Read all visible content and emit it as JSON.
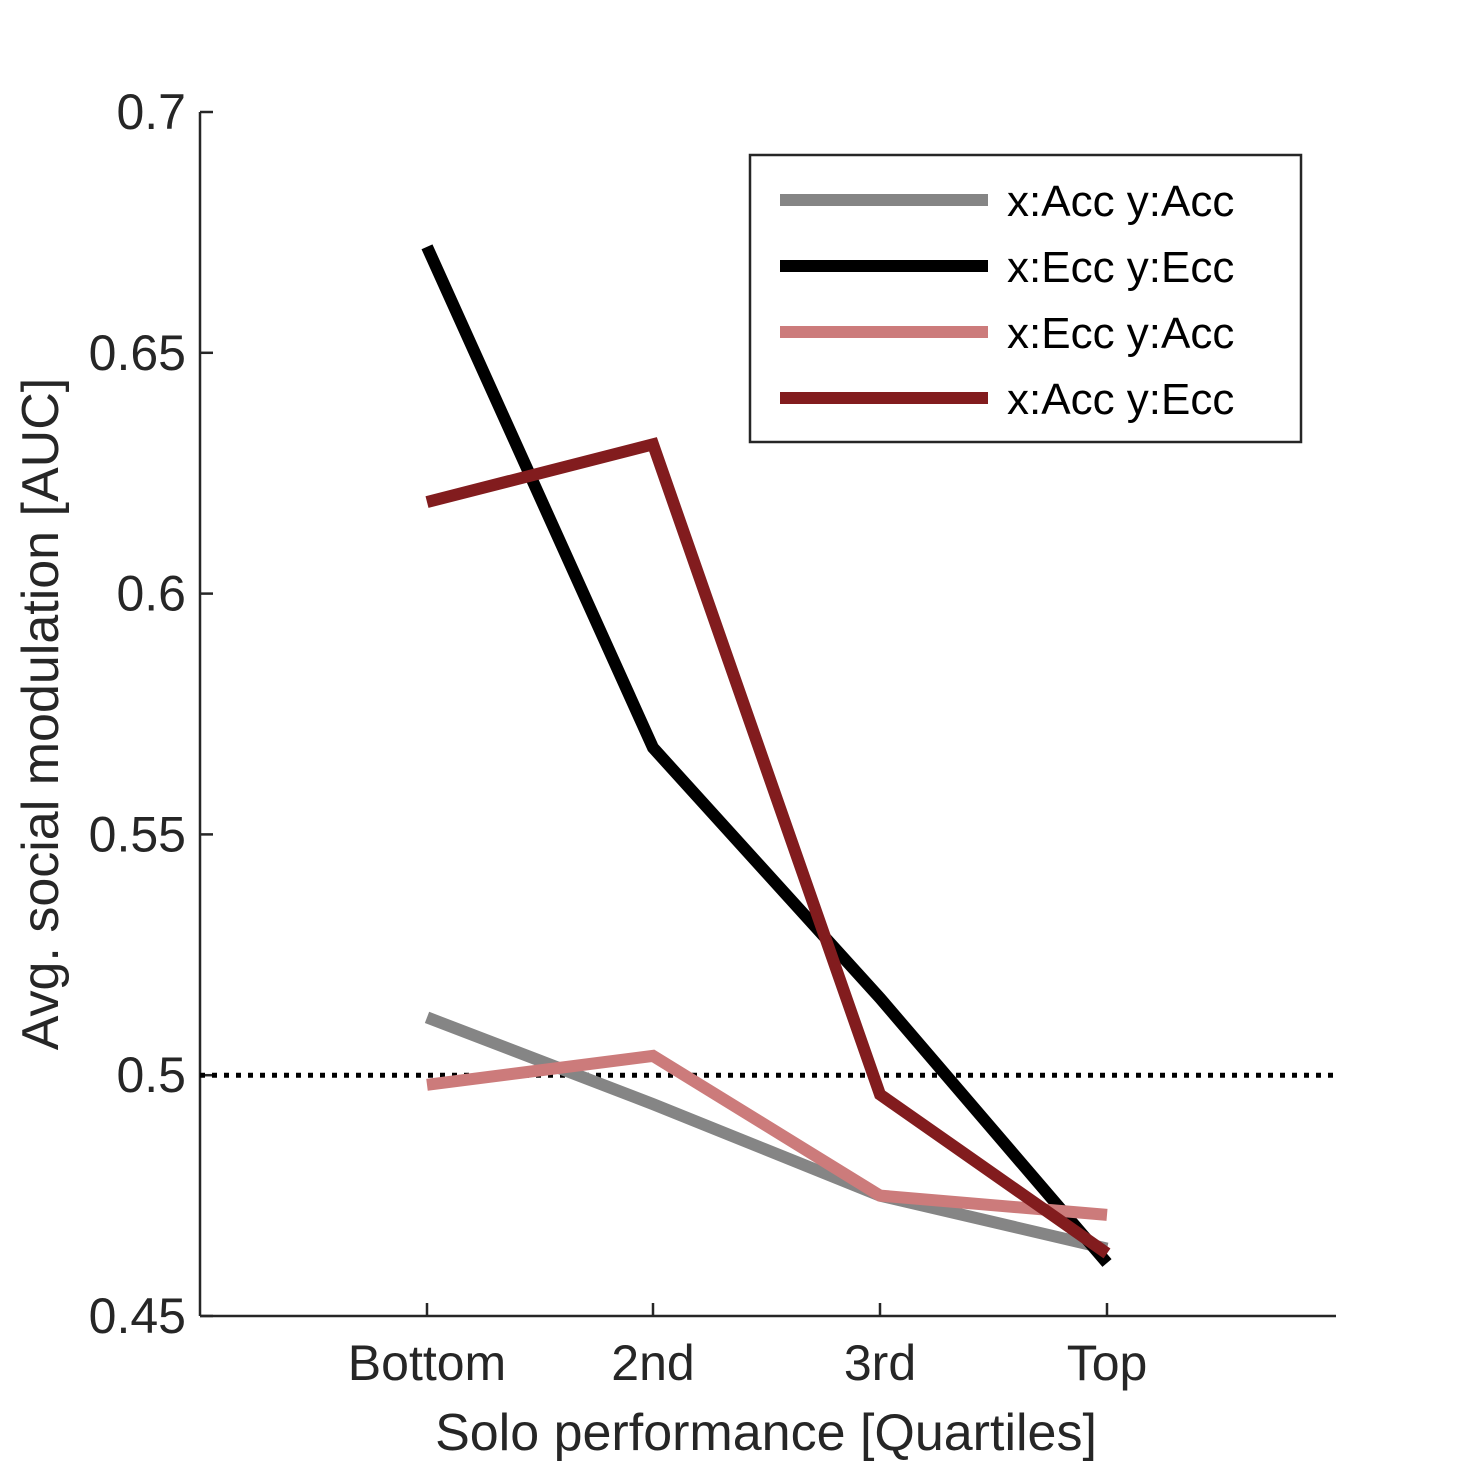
{
  "chart_data": {
    "type": "line",
    "xlabel": "Solo performance [Quartiles]",
    "ylabel": "Avg. social modulation [AUC]",
    "categories": [
      "Bottom",
      "2nd",
      "3rd",
      "Top"
    ],
    "ylim": [
      0.45,
      0.7
    ],
    "yticks": [
      "0.45",
      "0.5",
      "0.55",
      "0.6",
      "0.65",
      "0.7"
    ],
    "grid": false,
    "legend_position": "top-right",
    "reference_line": {
      "y": 0.5,
      "style": "dotted"
    },
    "series": [
      {
        "name": "x:Acc y:Acc",
        "color": "#858585",
        "values": [
          0.512,
          0.494,
          0.475,
          0.464
        ]
      },
      {
        "name": "x:Ecc y:Ecc",
        "color": "#000000",
        "values": [
          0.672,
          0.568,
          0.516,
          0.461
        ]
      },
      {
        "name": "x:Ecc y:Acc",
        "color": "#cc7b7b",
        "values": [
          0.498,
          0.504,
          0.475,
          0.471
        ]
      },
      {
        "name": "x:Acc y:Ecc",
        "color": "#821c1e",
        "values": [
          0.619,
          0.631,
          0.496,
          0.463
        ]
      }
    ]
  }
}
